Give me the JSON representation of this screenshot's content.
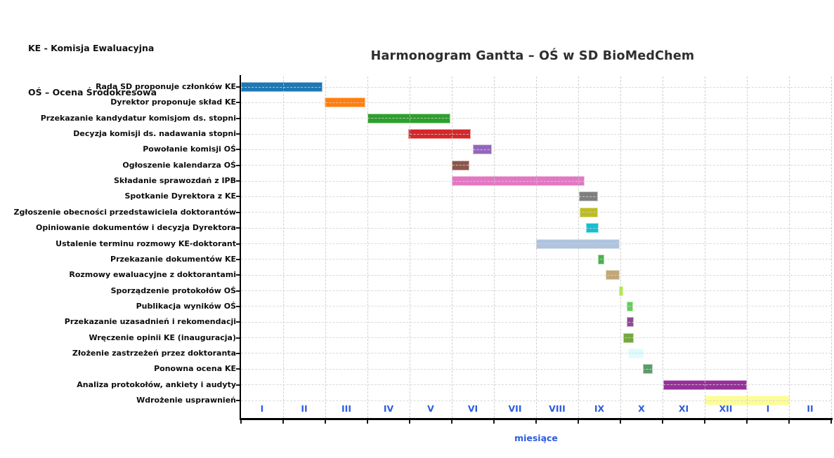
{
  "legend": {
    "line1": "KE - Komisja Ewaluacyjna",
    "line2": "OŚ – Ocena Śródokresowa"
  },
  "chart_data": {
    "type": "bar",
    "subtype": "gantt",
    "title": "Harmonogram Gantta – OŚ w SD BioMedChem",
    "xlabel": "miesiące",
    "ylabel": "",
    "x_tick_labels": [
      "I",
      "II",
      "III",
      "IV",
      "V",
      "VI",
      "VII",
      "VIII",
      "IX",
      "X",
      "XI",
      "XII",
      "I",
      "II"
    ],
    "xlim_months": [
      0,
      14
    ],
    "grid": true,
    "legend_position": "none",
    "tick_label_color": "#2c5ce0",
    "axis_color": "#000000",
    "title_color": "#2e2e2e",
    "tasks": [
      {
        "label": "Rada SD proponuje członków KE",
        "start": 0.0,
        "end": 1.93,
        "color": "#1f77b4"
      },
      {
        "label": "Dyrektor proponuje skład KE",
        "start": 1.98,
        "end": 2.95,
        "color": "#ff7f0e"
      },
      {
        "label": "Przekazanie kandydatur komisjom ds. stopni",
        "start": 3.0,
        "end": 4.97,
        "color": "#2ca02c"
      },
      {
        "label": "Decyzja komisji ds. nadawania stopni",
        "start": 3.97,
        "end": 5.45,
        "color": "#d62728"
      },
      {
        "label": "Powołanie komisji OŚ",
        "start": 5.5,
        "end": 5.95,
        "color": "#9467bd"
      },
      {
        "label": "Ogłoszenie kalendarza OŚ",
        "start": 5.0,
        "end": 5.42,
        "color": "#8c564b"
      },
      {
        "label": "Składanie sprawozdań z IPB",
        "start": 5.0,
        "end": 8.15,
        "color": "#e377c2"
      },
      {
        "label": "Spotkanie Dyrektora z KE",
        "start": 8.02,
        "end": 8.47,
        "color": "#7f7f7f"
      },
      {
        "label": "Zgłoszenie obecności przedstawiciela doktorantów",
        "start": 8.03,
        "end": 8.47,
        "color": "#bcbd22"
      },
      {
        "label": "Opiniowanie dokumentów i decyzja Dyrektora",
        "start": 8.18,
        "end": 8.48,
        "color": "#17becf"
      },
      {
        "label": "Ustalenie terminu rozmowy KE-doktorant",
        "start": 7.0,
        "end": 8.98,
        "color": "#b0c4de"
      },
      {
        "label": "Przekazanie dokumentów KE",
        "start": 8.46,
        "end": 8.62,
        "color": "#4caf50"
      },
      {
        "label": "Rozmowy ewaluacyjne z doktorantami",
        "start": 8.65,
        "end": 8.98,
        "color": "#c3a678"
      },
      {
        "label": "Sporządzenie protokołów OŚ",
        "start": 8.97,
        "end": 9.07,
        "color": "#adf02f"
      },
      {
        "label": "Publikacja wyników OŚ",
        "start": 9.15,
        "end": 9.3,
        "color": "#63cc5a"
      },
      {
        "label": "Przekazanie uzasadnień i rekomendacji",
        "start": 9.15,
        "end": 9.31,
        "color": "#8d4a8f"
      },
      {
        "label": "Wręczenie opinii KE (inauguracja)",
        "start": 9.07,
        "end": 9.31,
        "color": "#74a83e"
      },
      {
        "label": "Złożenie zastrzeżeń przez doktoranta",
        "start": 9.18,
        "end": 9.55,
        "color": "#dffbff"
      },
      {
        "label": "Ponowna ocena KE",
        "start": 9.53,
        "end": 9.77,
        "color": "#5d9b6b"
      },
      {
        "label": "Analiza protokołów, ankiety i audyty",
        "start": 10.02,
        "end": 12.0,
        "color": "#97309b"
      },
      {
        "label": "Wdrożenie usprawnień",
        "start": 11.0,
        "end": 13.02,
        "color": "#fdfd96"
      }
    ]
  }
}
